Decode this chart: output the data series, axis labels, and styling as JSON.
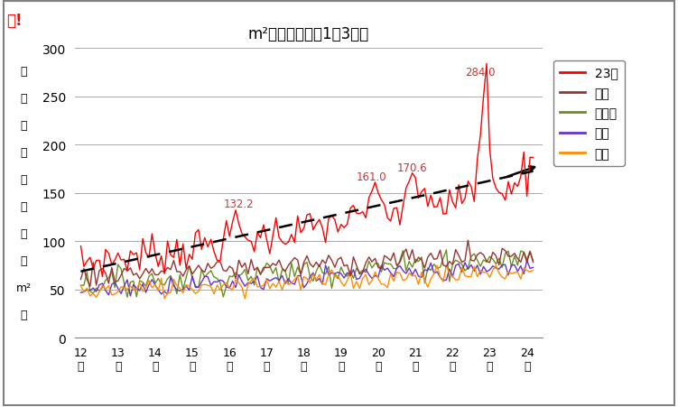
{
  "title": "m²単価の推移（1都3県）",
  "ylim": [
    0,
    300
  ],
  "yticks": [
    0,
    50,
    100,
    150,
    200,
    250,
    300
  ],
  "years": [
    12,
    13,
    14,
    15,
    16,
    17,
    18,
    19,
    20,
    21,
    22,
    23,
    24
  ],
  "series_colors": {
    "23区": "#FF0000",
    "都下": "#993333",
    "神奈川": "#6B8E23",
    "埼玉": "#6633CC",
    "千葉": "#FF8C00"
  },
  "trend_color": "#000000",
  "annotation_color": "#CC3333",
  "logo_text": "マ!",
  "logo_color": "#FF0000",
  "background_color": "#FFFFFF",
  "grid_color": "#AAAAAA",
  "ylabel_chars": [
    "発",
    "売",
    "単",
    "価",
    "（",
    "万",
    "円",
    "／",
    "m²",
    "）"
  ],
  "n_months": 147,
  "seed": 7,
  "border_color": "#808080"
}
